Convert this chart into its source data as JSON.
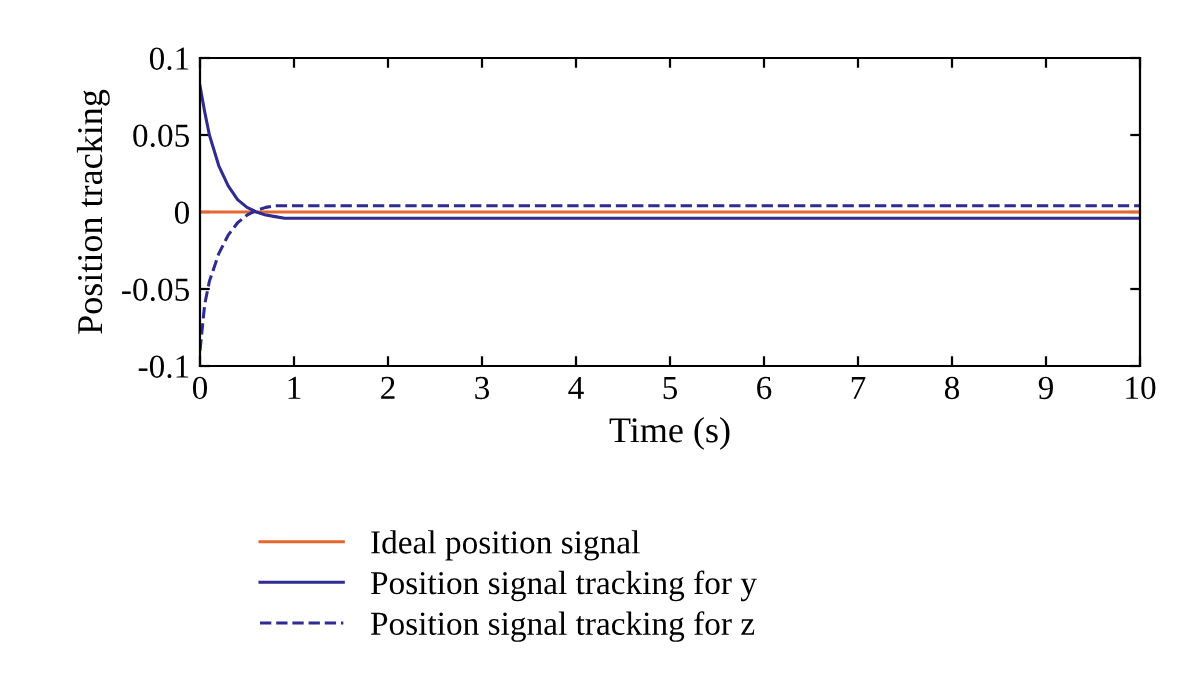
{
  "chart_data": {
    "type": "line",
    "xlabel": "Time (s)",
    "ylabel": "Position tracking",
    "xlim": [
      0,
      10
    ],
    "xticks": [
      0,
      1,
      2,
      3,
      4,
      5,
      6,
      7,
      8,
      9,
      10
    ],
    "ylim": [
      -0.1,
      0.1
    ],
    "yticks": [
      -0.1,
      -0.05,
      0,
      0.05,
      0.1
    ],
    "grid": false,
    "legend": "bottom",
    "series": [
      {
        "name": "Ideal position signal",
        "color": "#e5672e",
        "line_style": "solid",
        "x": [
          0,
          10
        ],
        "values": [
          0,
          0
        ]
      },
      {
        "name": "Position signal tracking for y",
        "color": "#2f2b8f",
        "line_style": "solid",
        "x": [
          0,
          0.05,
          0.1,
          0.2,
          0.3,
          0.4,
          0.5,
          0.6,
          0.7,
          0.8,
          0.9,
          10
        ],
        "values": [
          0.082,
          0.065,
          0.05,
          0.03,
          0.017,
          0.008,
          0.003,
          0.0,
          -0.002,
          -0.003,
          -0.004,
          -0.004
        ]
      },
      {
        "name": "Position signal tracking for z",
        "color": "#2f2b8f",
        "line_style": "dashed",
        "x": [
          0,
          0.05,
          0.1,
          0.2,
          0.3,
          0.4,
          0.5,
          0.6,
          0.7,
          0.8,
          10
        ],
        "values": [
          -0.09,
          -0.06,
          -0.045,
          -0.027,
          -0.015,
          -0.007,
          -0.002,
          0.001,
          0.003,
          0.004,
          0.004
        ]
      }
    ]
  }
}
